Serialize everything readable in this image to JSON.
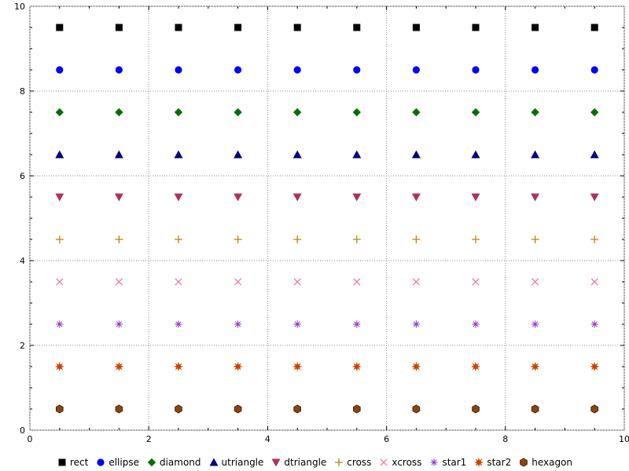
{
  "chart_data": {
    "type": "scatter",
    "title": "",
    "xlabel": "",
    "ylabel": "",
    "xlim": [
      0,
      10
    ],
    "ylim": [
      0,
      10
    ],
    "xticks": [
      0,
      2,
      4,
      6,
      8,
      10
    ],
    "yticks": [
      0,
      2,
      4,
      6,
      8,
      10
    ],
    "xtick_labels": [
      "0",
      "2",
      "4",
      "6",
      "8",
      "10"
    ],
    "ytick_labels": [
      "0",
      "2",
      "4",
      "6",
      "8",
      "10"
    ],
    "grid": "dotted-major-every-2",
    "legend_position": "bottom",
    "x_values": [
      0.5,
      1.5,
      2.5,
      3.5,
      4.5,
      5.5,
      6.5,
      7.5,
      8.5,
      9.5
    ],
    "series": [
      {
        "name": "rect",
        "marker": "rect",
        "color": "#000000",
        "y": 9.5
      },
      {
        "name": "ellipse",
        "marker": "ellipse",
        "color": "#0000ff",
        "y": 8.5
      },
      {
        "name": "diamond",
        "marker": "diamond",
        "color": "#067006",
        "y": 7.5
      },
      {
        "name": "utriangle",
        "marker": "utriangle",
        "color": "#000080",
        "y": 6.5
      },
      {
        "name": "dtriangle",
        "marker": "dtriangle",
        "color": "#b03060",
        "y": 5.5
      },
      {
        "name": "cross",
        "marker": "cross",
        "color": "#b8860b",
        "y": 4.5
      },
      {
        "name": "xcross",
        "marker": "xcross",
        "color": "#ee6aa7",
        "y": 3.5
      },
      {
        "name": "star1",
        "marker": "star1",
        "color": "#9932cc",
        "y": 2.5
      },
      {
        "name": "star2",
        "marker": "star2",
        "color": "#cc4400",
        "y": 1.5
      },
      {
        "name": "hexagon",
        "marker": "hexagon",
        "color": "#8b4513",
        "y": 0.5
      }
    ],
    "colors": {
      "background": "#ffffff",
      "border": "#000000",
      "grid": "#8a8a8a",
      "axis_text": "#000000",
      "hexagon_stroke": "#42230b"
    }
  }
}
